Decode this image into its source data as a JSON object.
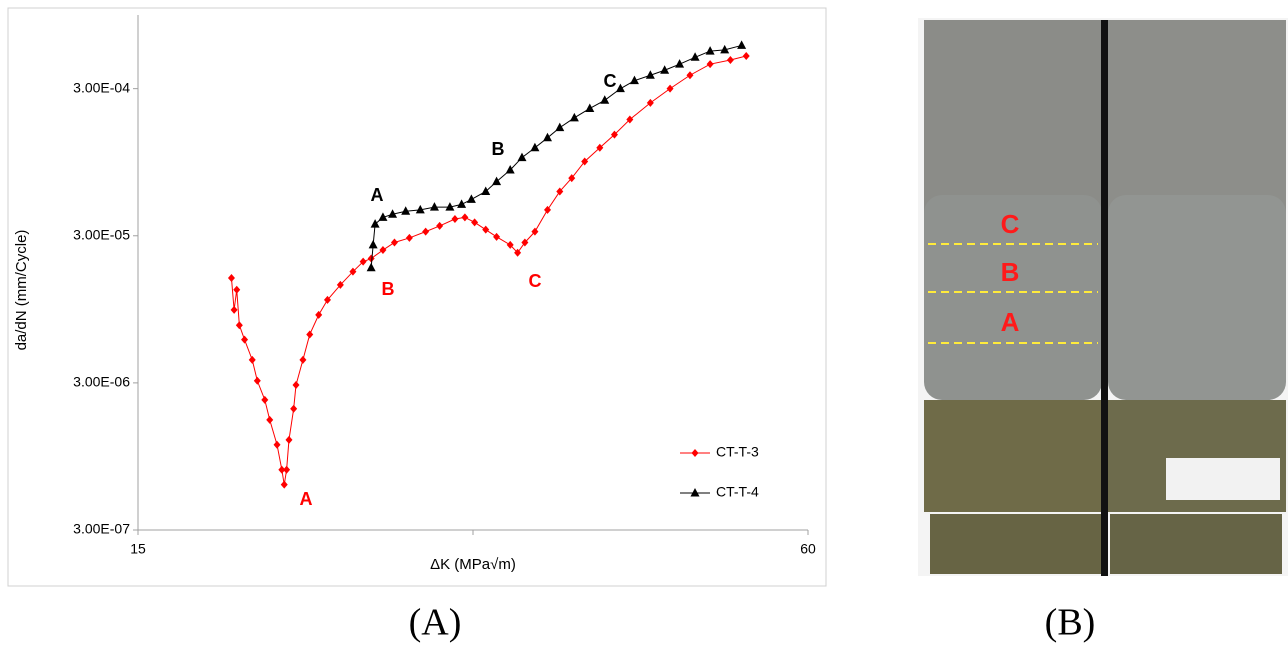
{
  "chart_data": {
    "type": "line",
    "xlabel": "ΔK (MPa√m)",
    "ylabel": "da/dN (mm/Cycle)",
    "xscale": "log",
    "yscale": "log",
    "xlim": [
      15,
      60
    ],
    "ylim": [
      3e-07,
      0.00095
    ],
    "xticks": [
      15,
      {
        "value": 30,
        "label": null
      },
      60
    ],
    "yticks": [
      {
        "value": 3e-07,
        "label": "3.00E-07"
      },
      {
        "value": 3e-06,
        "label": "3.00E-06"
      },
      {
        "value": 3e-05,
        "label": "3.00E-05"
      },
      {
        "value": 0.0003,
        "label": "3.00E-04"
      }
    ],
    "legend": "lower right",
    "series": [
      {
        "name": "CT-T-3",
        "color": "#ff0000",
        "marker": "diamond",
        "x": [
          18.2,
          18.3,
          18.4,
          18.5,
          18.7,
          19.0,
          19.2,
          19.5,
          19.7,
          20.0,
          20.2,
          20.3,
          20.4,
          20.5,
          20.7,
          20.8,
          21.1,
          21.4,
          21.8,
          22.2,
          22.8,
          23.4,
          23.9,
          24.3,
          24.9,
          25.5,
          26.3,
          27.2,
          28.0,
          28.9,
          29.5,
          30.1,
          30.8,
          31.5,
          32.4,
          32.9,
          33.4,
          34.1,
          35.0,
          35.9,
          36.8,
          37.8,
          39.0,
          40.2,
          41.5,
          43.3,
          45.1,
          47.0,
          49.0,
          51.1,
          52.8
        ],
        "values": [
          1.55e-05,
          9.4e-06,
          1.29e-05,
          7.4e-06,
          5.9e-06,
          4.3e-06,
          3.1e-06,
          2.3e-06,
          1.68e-06,
          1.14e-06,
          7.7e-07,
          6.1e-07,
          7.7e-07,
          1.23e-06,
          2e-06,
          2.9e-06,
          4.3e-06,
          6.4e-06,
          8.7e-06,
          1.1e-05,
          1.39e-05,
          1.71e-05,
          2e-05,
          2.1e-05,
          2.4e-05,
          2.7e-05,
          2.9e-05,
          3.2e-05,
          3.5e-05,
          3.9e-05,
          4e-05,
          3.7e-05,
          3.3e-05,
          2.95e-05,
          2.6e-05,
          2.3e-05,
          2.7e-05,
          3.2e-05,
          4.5e-05,
          6e-05,
          7.4e-05,
          9.6e-05,
          0.000119,
          0.000146,
          0.000185,
          0.00024,
          0.0003,
          0.00037,
          0.00044,
          0.00047,
          0.0005
        ]
      },
      {
        "name": "CT-T-4",
        "color": "#000000",
        "marker": "triangle",
        "x": [
          24.3,
          24.4,
          24.5,
          24.9,
          25.4,
          26.1,
          26.9,
          27.7,
          28.6,
          29.3,
          29.9,
          30.8,
          31.5,
          32.4,
          33.2,
          34.1,
          35.0,
          35.9,
          37.0,
          38.2,
          39.4,
          40.7,
          41.9,
          43.3,
          44.6,
          46.0,
          47.5,
          49.0,
          50.5,
          52.3
        ],
        "values": [
          1.82e-05,
          2.6e-05,
          3.6e-05,
          4e-05,
          4.2e-05,
          4.4e-05,
          4.5e-05,
          4.7e-05,
          4.7e-05,
          4.9e-05,
          5.3e-05,
          6e-05,
          7e-05,
          8.4e-05,
          0.000102,
          0.000119,
          0.000139,
          0.000163,
          0.00019,
          0.00022,
          0.00025,
          0.0003,
          0.00034,
          0.00037,
          0.0004,
          0.00044,
          0.00049,
          0.00054,
          0.00055,
          0.00059
        ]
      }
    ],
    "annotations": [
      {
        "text": "A",
        "color": "#ff0000"
      },
      {
        "text": "B",
        "color": "#ff0000"
      },
      {
        "text": "C",
        "color": "#ff0000"
      },
      {
        "text": "A",
        "color": "#000000"
      },
      {
        "text": "B",
        "color": "#000000"
      },
      {
        "text": "C",
        "color": "#000000"
      }
    ]
  },
  "photo": {
    "labels": [
      "C",
      "B",
      "A"
    ]
  },
  "captions": [
    "(A)",
    "(B)"
  ]
}
